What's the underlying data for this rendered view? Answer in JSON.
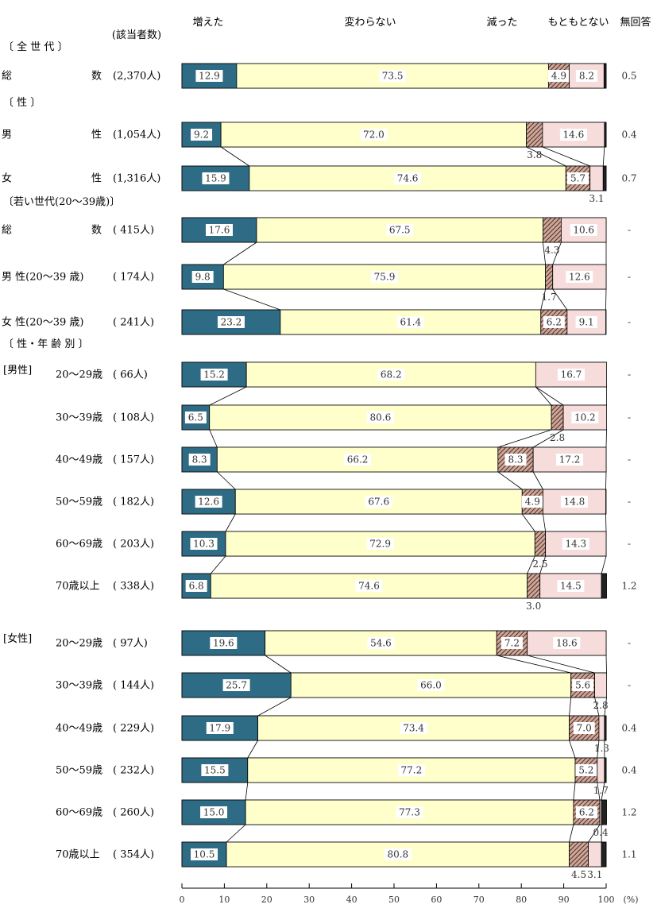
{
  "chart_data": {
    "type": "bar",
    "stacked": true,
    "orientation": "horizontal",
    "x_axis": {
      "min": 0,
      "max": 100,
      "ticks": [
        "0",
        "10",
        "20",
        "30",
        "40",
        "50",
        "60",
        "70",
        "80",
        "90",
        "100"
      ],
      "unit": "(%)"
    },
    "series_names": [
      "増えた",
      "変わらない",
      "減った",
      "もともとない",
      "無回答"
    ],
    "colors": [
      "#2e6b84",
      "#ffffcc",
      "#a06a5a",
      "#f7dcdc",
      "#222222"
    ],
    "count_header": "(該当者数)",
    "section_labels": [
      {
        "text": "〔 全 世 代 〕"
      },
      {
        "text": "〔 性 〕"
      },
      {
        "text": "〔若い世代(20～39歳)〕"
      },
      {
        "text": "〔 性・年 齢 別 〕"
      },
      {
        "text": "[男性]"
      },
      {
        "text": "[女性]"
      }
    ],
    "rows": [
      {
        "label": "総 数",
        "count": "(2,370人)",
        "values": [
          12.9,
          73.5,
          4.9,
          8.2,
          0.5
        ],
        "labels": [
          "12.9",
          "73.5",
          "4.9",
          "8.2",
          "0.5"
        ]
      },
      {
        "label": "男 性",
        "count": "(1,054人)",
        "values": [
          9.2,
          72.0,
          3.8,
          14.6,
          0.4
        ],
        "labels": [
          "9.2",
          "72.0",
          "3.8",
          "14.6",
          "0.4"
        ]
      },
      {
        "label": "女 性",
        "count": "(1,316人)",
        "values": [
          15.9,
          74.6,
          5.7,
          3.1,
          0.7
        ],
        "labels": [
          "15.9",
          "74.6",
          "5.7",
          "3.1",
          "0.7"
        ]
      },
      {
        "label": "総 数",
        "count": "( 415人)",
        "values": [
          17.6,
          67.5,
          4.3,
          10.6,
          0
        ],
        "labels": [
          "17.6",
          "67.5",
          "4.3",
          "10.6",
          "-"
        ]
      },
      {
        "label": "男 性(20～39 歳)",
        "count": "( 174人)",
        "values": [
          9.8,
          75.9,
          1.7,
          12.6,
          0
        ],
        "labels": [
          "9.8",
          "75.9",
          "1.7",
          "12.6",
          "-"
        ]
      },
      {
        "label": "女 性(20～39 歳)",
        "count": "( 241人)",
        "values": [
          23.2,
          61.4,
          6.2,
          9.1,
          0
        ],
        "labels": [
          "23.2",
          "61.4",
          "6.2",
          "9.1",
          "-"
        ]
      },
      {
        "label": "20～29歳",
        "count": "( 66人)",
        "values": [
          15.2,
          68.2,
          0,
          16.7,
          0
        ],
        "labels": [
          "15.2",
          "68.2",
          "-",
          "16.7",
          "-"
        ]
      },
      {
        "label": "30～39歳",
        "count": "( 108人)",
        "values": [
          6.5,
          80.6,
          2.8,
          10.2,
          0
        ],
        "labels": [
          "6.5",
          "80.6",
          "2.8",
          "10.2",
          "-"
        ]
      },
      {
        "label": "40～49歳",
        "count": "( 157人)",
        "values": [
          8.3,
          66.2,
          8.3,
          17.2,
          0
        ],
        "labels": [
          "8.3",
          "66.2",
          "8.3",
          "17.2",
          "-"
        ]
      },
      {
        "label": "50～59歳",
        "count": "( 182人)",
        "values": [
          12.6,
          67.6,
          4.9,
          14.8,
          0
        ],
        "labels": [
          "12.6",
          "67.6",
          "4.9",
          "14.8",
          "-"
        ]
      },
      {
        "label": "60～69歳",
        "count": "( 203人)",
        "values": [
          10.3,
          72.9,
          2.5,
          14.3,
          0
        ],
        "labels": [
          "10.3",
          "72.9",
          "2.5",
          "14.3",
          "-"
        ]
      },
      {
        "label": "70歳以上",
        "count": "( 338人)",
        "values": [
          6.8,
          74.6,
          3.0,
          14.5,
          1.2
        ],
        "labels": [
          "6.8",
          "74.6",
          "3.0",
          "14.5",
          "1.2"
        ]
      },
      {
        "label": "20～29歳",
        "count": "( 97人)",
        "values": [
          19.6,
          54.6,
          7.2,
          18.6,
          0
        ],
        "labels": [
          "19.6",
          "54.6",
          "7.2",
          "18.6",
          "-"
        ]
      },
      {
        "label": "30～39歳",
        "count": "( 144人)",
        "values": [
          25.7,
          66.0,
          5.6,
          2.8,
          0
        ],
        "labels": [
          "25.7",
          "66.0",
          "5.6",
          "2.8",
          "-"
        ]
      },
      {
        "label": "40～49歳",
        "count": "( 229人)",
        "values": [
          17.9,
          73.4,
          7.0,
          1.3,
          0.4
        ],
        "labels": [
          "17.9",
          "73.4",
          "7.0",
          "1.3",
          "0.4"
        ]
      },
      {
        "label": "50～59歳",
        "count": "( 232人)",
        "values": [
          15.5,
          77.2,
          5.2,
          1.7,
          0.4
        ],
        "labels": [
          "15.5",
          "77.2",
          "5.2",
          "1.7",
          "0.4"
        ]
      },
      {
        "label": "60～69歳",
        "count": "( 260人)",
        "values": [
          15.0,
          77.3,
          6.2,
          0.4,
          1.2
        ],
        "labels": [
          "15.0",
          "77.3",
          "6.2",
          "0.4",
          "1.2"
        ]
      },
      {
        "label": "70歳以上",
        "count": "( 354人)",
        "values": [
          10.5,
          80.8,
          4.5,
          3.1,
          1.1
        ],
        "labels": [
          "10.5",
          "80.8",
          "4.5",
          "3.1",
          "1.1"
        ]
      }
    ]
  }
}
